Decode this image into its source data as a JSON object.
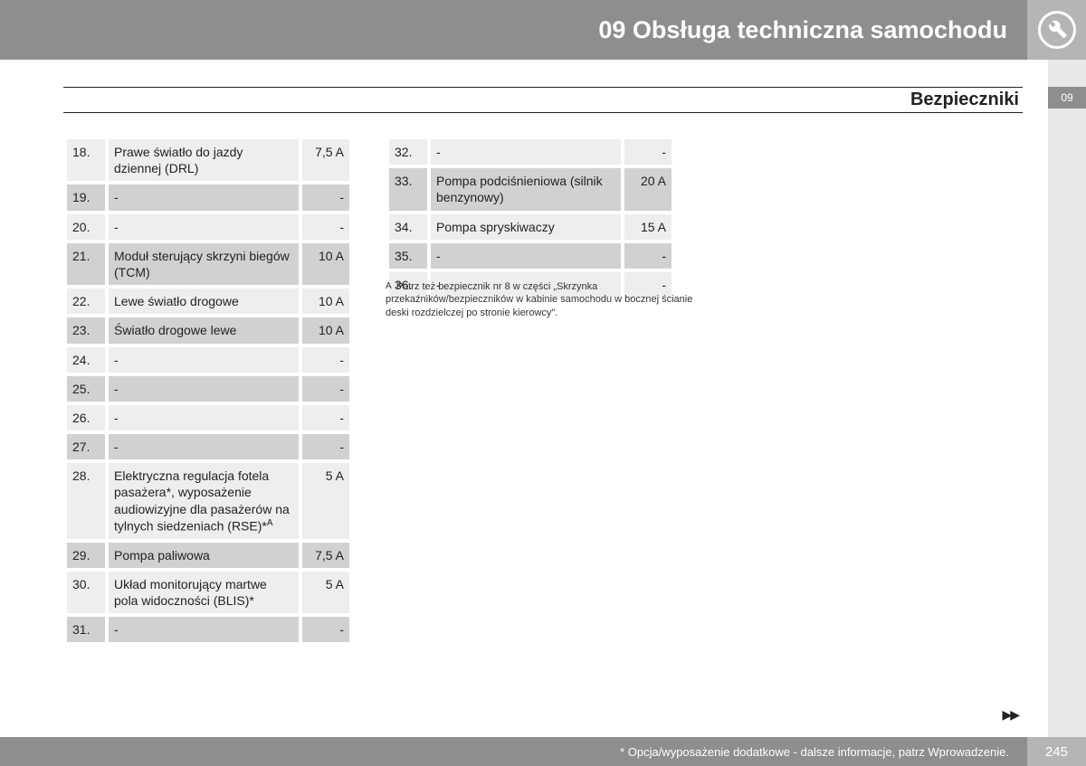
{
  "header": {
    "chapter_title": "09 Obsługa techniczna samochodu",
    "section_title": "Bezpieczniki",
    "chapter_badge": "09"
  },
  "columns": {
    "table1": [
      {
        "num": "18.",
        "desc": "Prawe światło do jazdy dziennej (DRL)",
        "val": "7,5 A",
        "shade": "light"
      },
      {
        "num": "19.",
        "desc": "-",
        "val": "-",
        "shade": "dark"
      },
      {
        "num": "20.",
        "desc": "-",
        "val": "-",
        "shade": "light"
      },
      {
        "num": "21.",
        "desc": "Moduł sterujący skrzyni biegów (TCM)",
        "val": "10 A",
        "shade": "dark"
      },
      {
        "num": "22.",
        "desc": "Lewe światło drogowe",
        "val": "10 A",
        "shade": "light"
      },
      {
        "num": "23.",
        "desc": "Światło drogowe lewe",
        "val": "10 A",
        "shade": "dark"
      },
      {
        "num": "24.",
        "desc": "-",
        "val": "-",
        "shade": "light"
      },
      {
        "num": "25.",
        "desc": "-",
        "val": "-",
        "shade": "dark"
      },
      {
        "num": "26.",
        "desc": "-",
        "val": "-",
        "shade": "light"
      },
      {
        "num": "27.",
        "desc": "-",
        "val": "-",
        "shade": "dark"
      },
      {
        "num": "28.",
        "desc": "Elektryczna regulacja fotela pasażera*, wyposażenie audiowizyjne dla pasażerów na tylnych siedzeniach (RSE)*",
        "sup": "A",
        "val": "5 A",
        "shade": "light"
      },
      {
        "num": "29.",
        "desc": "Pompa paliwowa",
        "val": "7,5 A",
        "shade": "dark"
      },
      {
        "num": "30.",
        "desc": "Układ monitorujący martwe pola widoczności (BLIS)*",
        "val": "5 A",
        "shade": "light"
      },
      {
        "num": "31.",
        "desc": "-",
        "val": "-",
        "shade": "dark"
      }
    ],
    "table2": [
      {
        "num": "32.",
        "desc": "-",
        "val": "-",
        "shade": "light"
      },
      {
        "num": "33.",
        "desc": "Pompa podciśnieniowa (silnik benzynowy)",
        "val": "20 A",
        "shade": "dark"
      },
      {
        "num": "34.",
        "desc": "Pompa spryskiwaczy",
        "val": "15 A",
        "shade": "light"
      },
      {
        "num": "35.",
        "desc": "-",
        "val": "-",
        "shade": "dark"
      },
      {
        "num": "36.",
        "desc": "-",
        "val": "-",
        "shade": "light"
      }
    ]
  },
  "footnote": {
    "mark": "A",
    "text": "Patrz też bezpiecznik nr 8 w części „Skrzynka przekaźników/bezpieczników w kabinie samochodu w bocznej ścianie deski rozdzielczej po stronie kierowcy\"."
  },
  "footer": {
    "note": "* Opcja/wyposażenie dodatkowe - dalsze informacje, patrz Wprowadzenie.",
    "page": "245",
    "continue_arrows": "▶▶"
  }
}
